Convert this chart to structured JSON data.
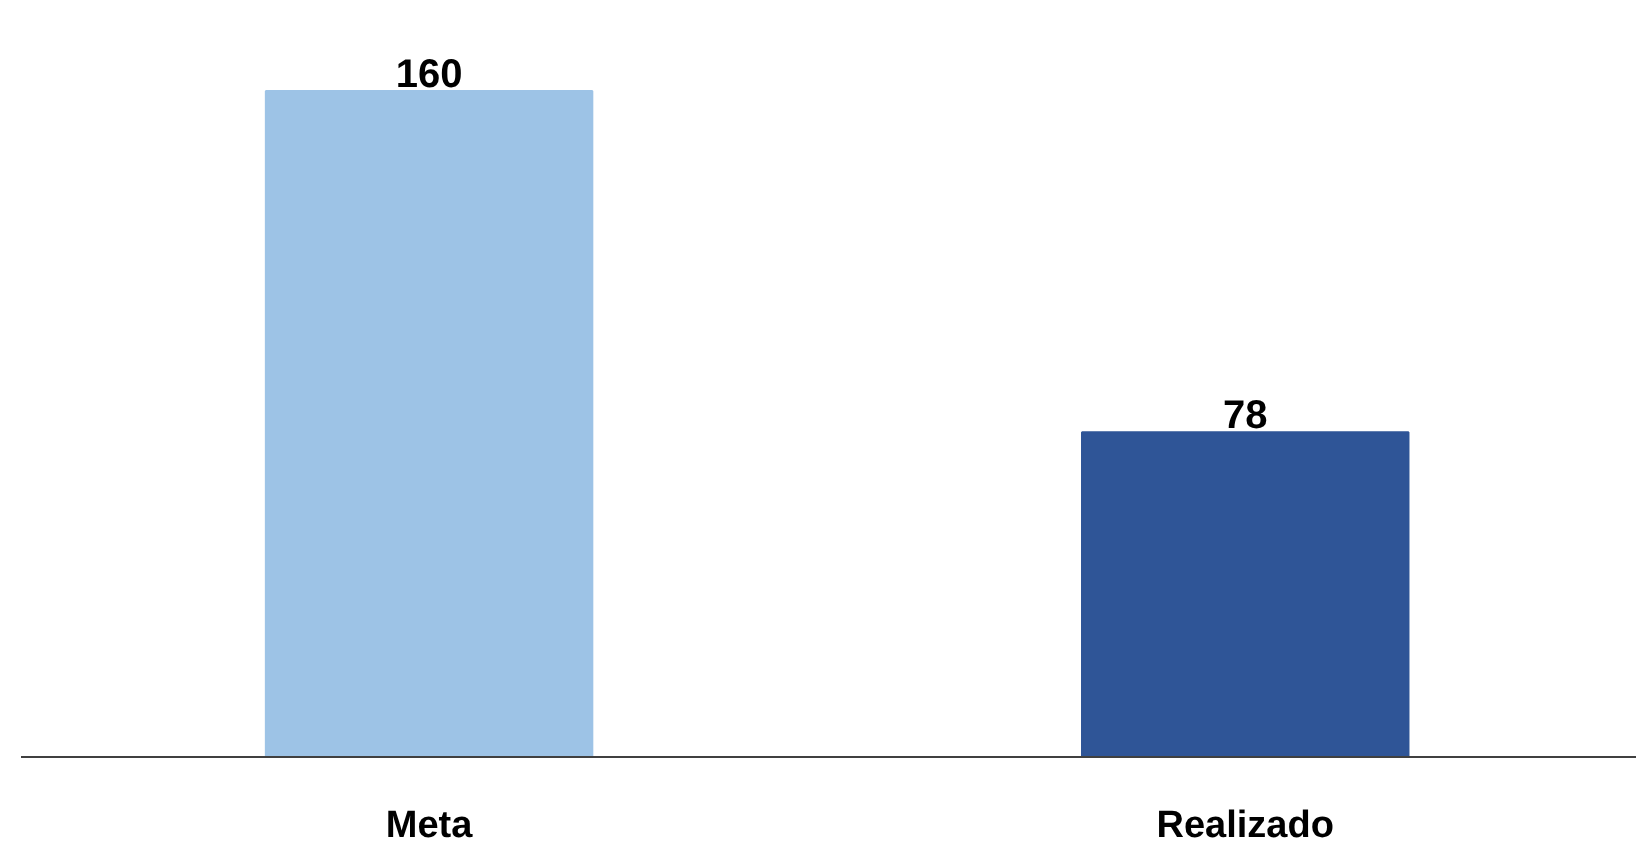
{
  "chart_data": {
    "type": "bar",
    "categories": [
      "Meta",
      "Realizado"
    ],
    "values": [
      160,
      78
    ],
    "colors": [
      "#9dc3e6",
      "#2f5597"
    ],
    "data_labels": true,
    "grid": false
  }
}
